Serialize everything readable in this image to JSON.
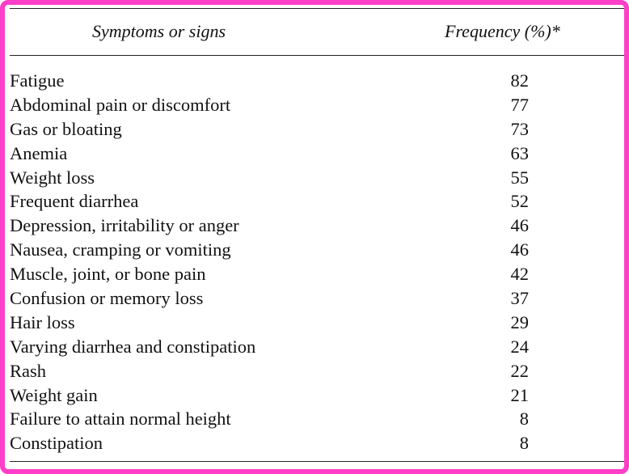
{
  "table": {
    "headers": {
      "symptom": "Symptoms or signs",
      "frequency": "Frequency (%)*"
    },
    "rows": [
      {
        "symptom": "Fatigue",
        "frequency": "82"
      },
      {
        "symptom": "Abdominal pain or discomfort",
        "frequency": "77"
      },
      {
        "symptom": "Gas or bloating",
        "frequency": "73"
      },
      {
        "symptom": "Anemia",
        "frequency": "63"
      },
      {
        "symptom": "Weight loss",
        "frequency": "55"
      },
      {
        "symptom": "Frequent diarrhea",
        "frequency": "52"
      },
      {
        "symptom": "Depression, irritability or anger",
        "frequency": "46"
      },
      {
        "symptom": "Nausea, cramping or vomiting",
        "frequency": "46"
      },
      {
        "symptom": "Muscle, joint, or bone pain",
        "frequency": "42"
      },
      {
        "symptom": "Confusion or memory loss",
        "frequency": "37"
      },
      {
        "symptom": "Hair loss",
        "frequency": "29"
      },
      {
        "symptom": "Varying diarrhea and constipation",
        "frequency": "24"
      },
      {
        "symptom": "Rash",
        "frequency": "22"
      },
      {
        "symptom": "Weight gain",
        "frequency": "21"
      },
      {
        "symptom": "Failure to attain normal height",
        "frequency": "8"
      },
      {
        "symptom": "Constipation",
        "frequency": "8"
      }
    ]
  },
  "colors": {
    "frame": "#ff3fc8",
    "text": "#111111",
    "background": "#ffffff"
  }
}
